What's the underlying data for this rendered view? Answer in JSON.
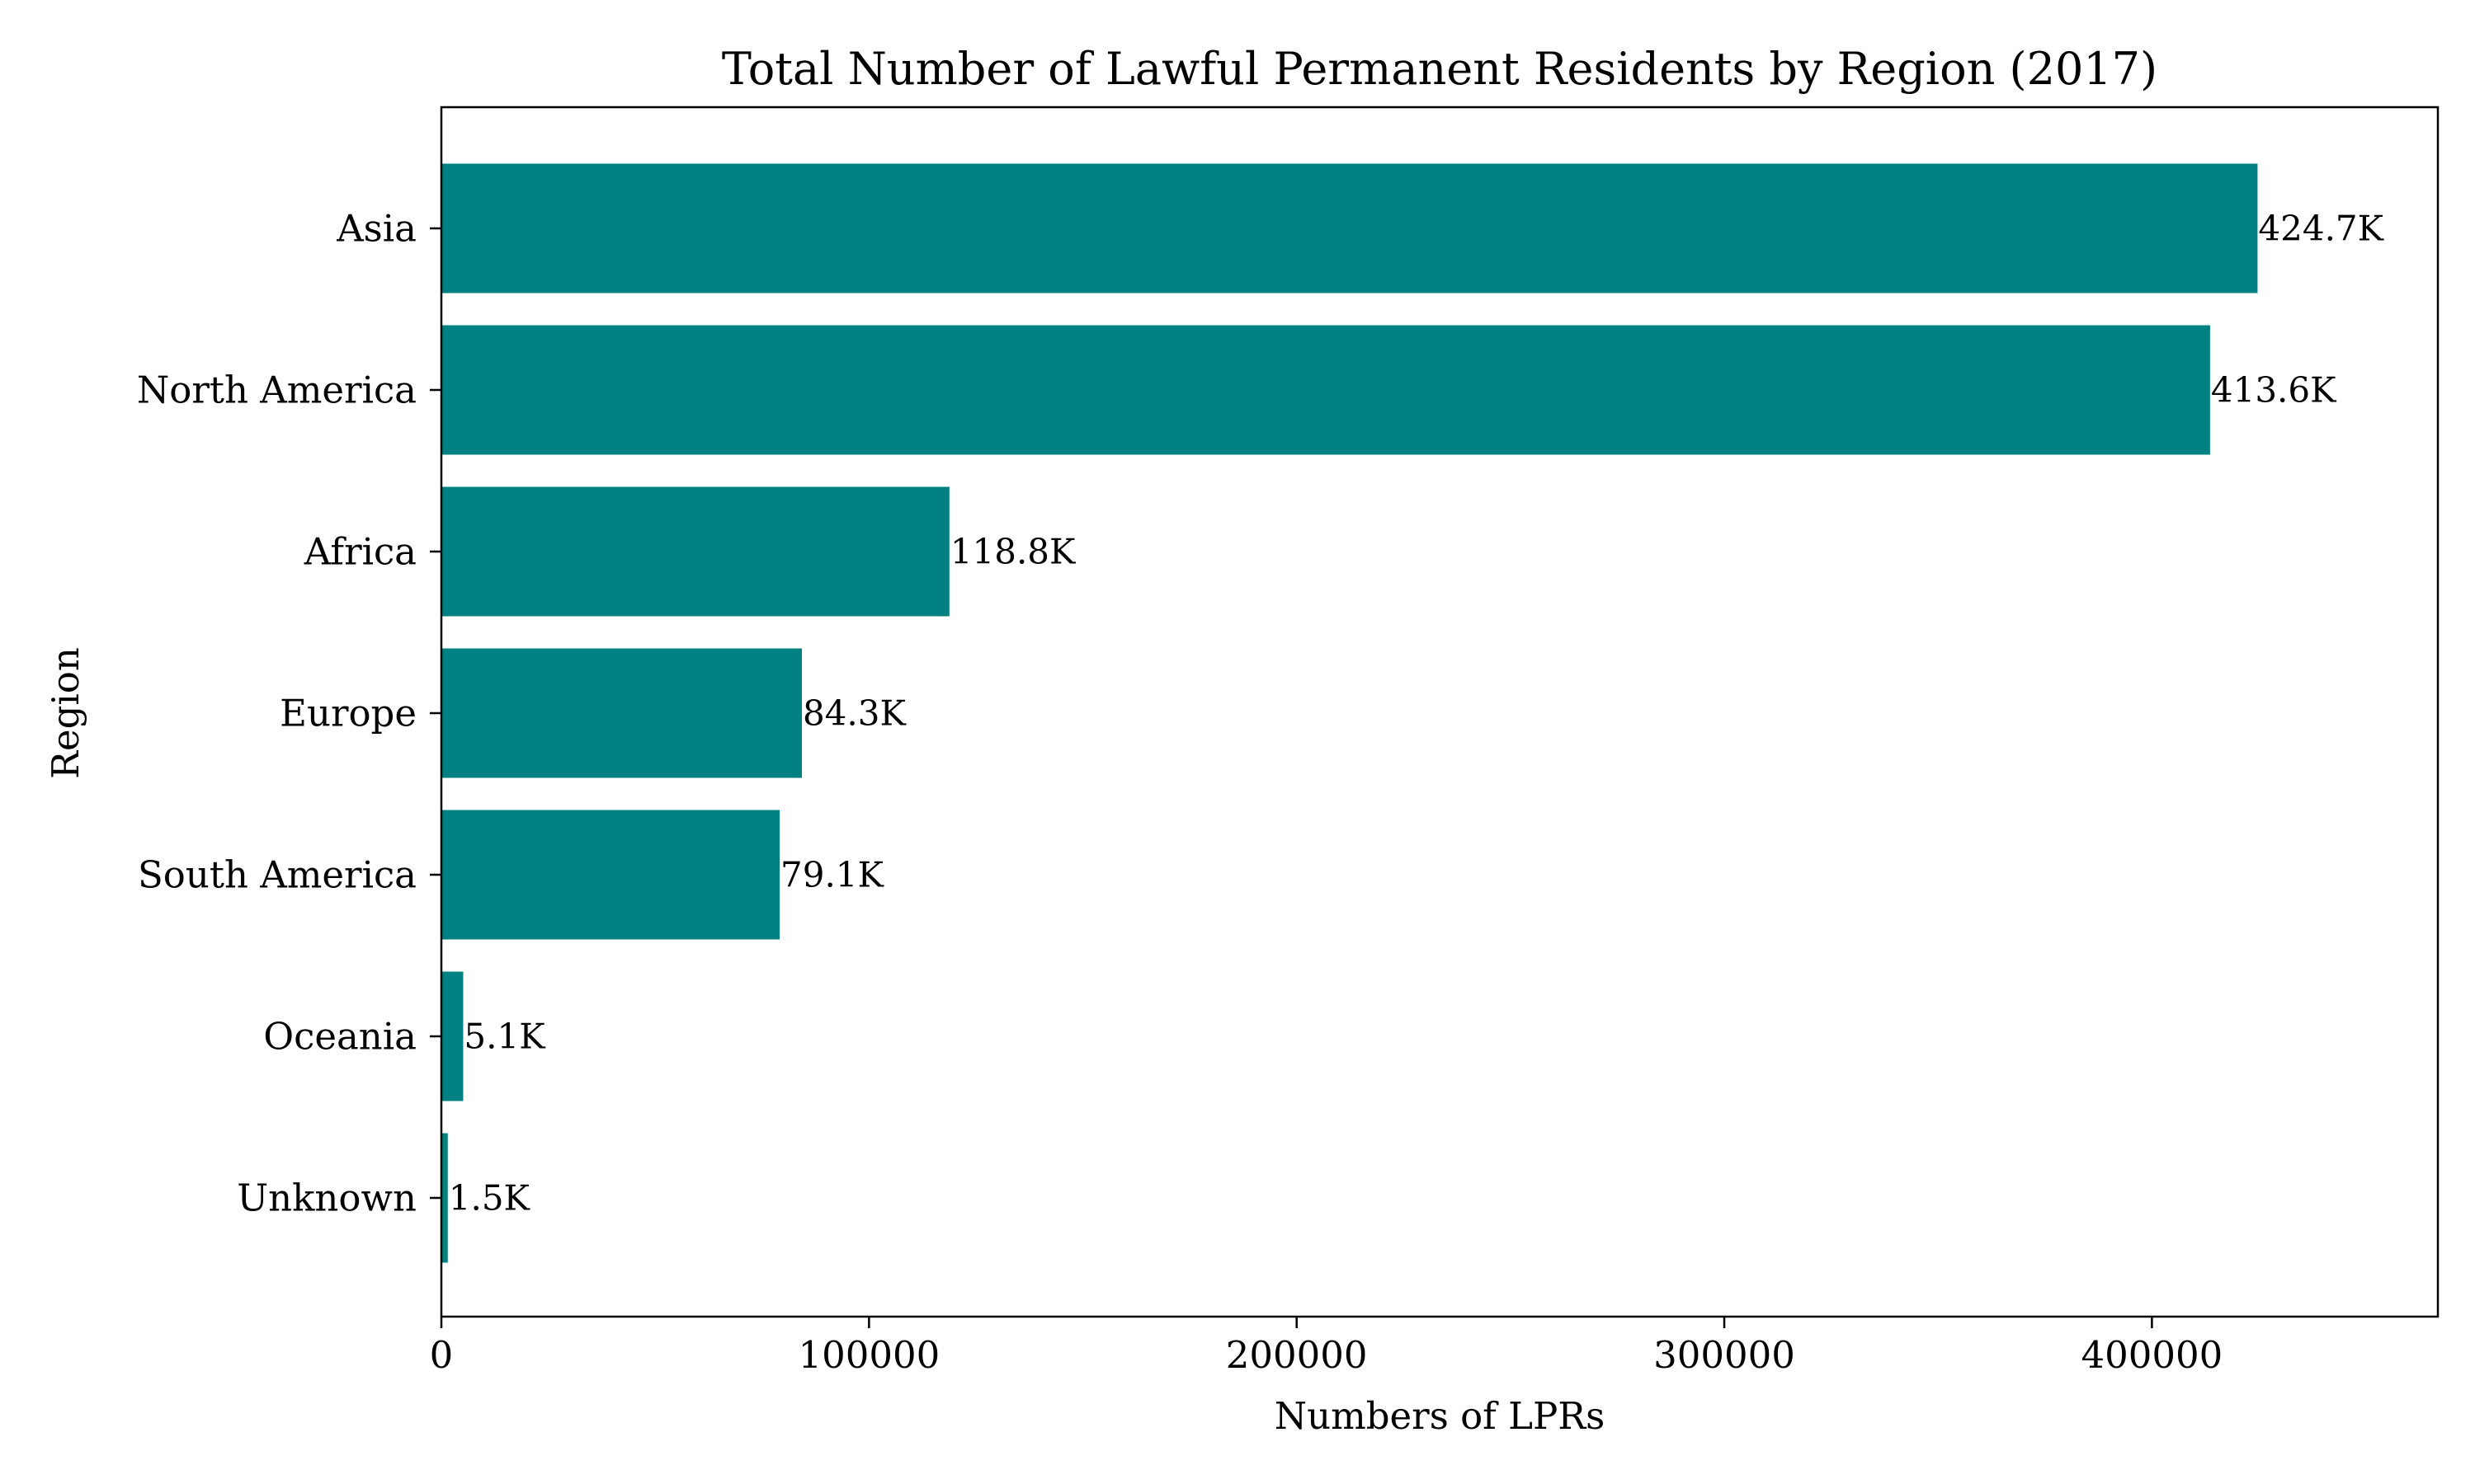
{
  "chart_data": {
    "type": "bar",
    "orientation": "horizontal",
    "title": "Total Number of Lawful Permanent Residents by Region (2017)",
    "xlabel": "Numbers of LPRs",
    "ylabel": "Region",
    "categories": [
      "Asia",
      "North America",
      "Africa",
      "Europe",
      "South America",
      "Oceania",
      "Unknown"
    ],
    "values": [
      424700,
      413600,
      118800,
      84300,
      79100,
      5100,
      1500
    ],
    "data_labels": [
      "424.7K",
      "413.6K",
      "118.8K",
      "84.3K",
      "79.1K",
      "5.1K",
      "1.5K"
    ],
    "xlim": [
      0,
      466870
    ],
    "xticks": [
      0,
      100000,
      200000,
      300000,
      400000
    ],
    "xtick_labels": [
      "0",
      "100000",
      "200000",
      "300000",
      "400000"
    ],
    "grid": false,
    "colors": {
      "bar": "#008080",
      "axis": "#000000",
      "text": "#000000",
      "background": "#ffffff"
    }
  }
}
